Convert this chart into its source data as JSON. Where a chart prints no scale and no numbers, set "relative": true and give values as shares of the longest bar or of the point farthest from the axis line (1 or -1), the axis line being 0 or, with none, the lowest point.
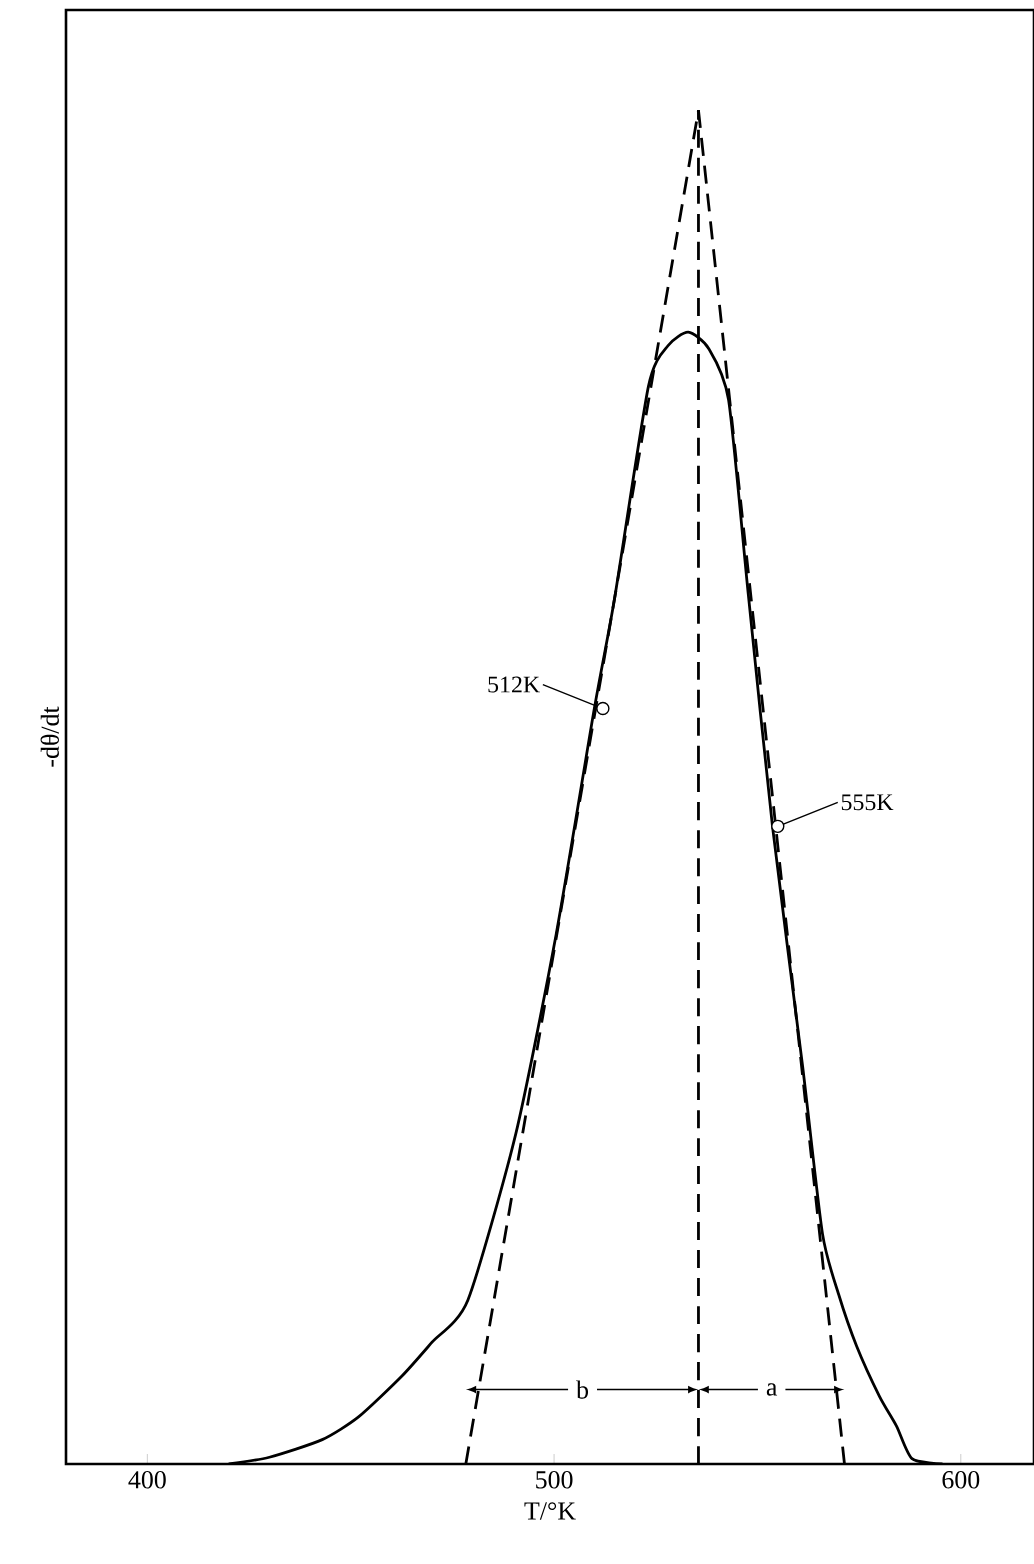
{
  "chart_data": {
    "type": "line",
    "relative": true,
    "xlabel": "T/°K",
    "ylabel": "-dθ/dt",
    "xlim": [
      380,
      618
    ],
    "xticks": [
      400,
      500,
      600
    ],
    "series": [
      {
        "type": "line",
        "color": "#000000",
        "line_style": "solid",
        "x": [
          420,
          430,
          443,
          452,
          462.6,
          470,
          478.8,
          490.6,
          500.5,
          509.9,
          514.8,
          523.2,
          528,
          533,
          538,
          542.9,
          547.8,
          553.7,
          561.1,
          566,
          570,
          574.4,
          580,
          584.2,
          588,
          595.5
        ],
        "values": [
          0,
          0.005,
          0.018,
          0.035,
          0.065,
          0.09,
          0.121,
          0.244,
          0.391,
          0.558,
          0.638,
          0.796,
          0.826,
          0.836,
          0.824,
          0.786,
          0.641,
          0.471,
          0.294,
          0.17,
          0.125,
          0.087,
          0.05,
          0.028,
          0.004,
          0
        ]
      },
      {
        "type": "line",
        "color": "#000000",
        "line_style": "dashed",
        "x": [
          478.3,
          535.5
        ],
        "values": [
          0,
          1
        ]
      },
      {
        "type": "line",
        "color": "#000000",
        "line_style": "dashed",
        "x": [
          535.5,
          571.4
        ],
        "values": [
          1,
          0
        ]
      },
      {
        "type": "line",
        "color": "#000000",
        "line_style": "dashed",
        "x": [
          535.5,
          535.5
        ],
        "values": [
          0,
          1
        ]
      }
    ],
    "annotations": [
      {
        "text": "512K",
        "x": 512,
        "y": 0.558
      },
      {
        "text": "555K",
        "x": 555,
        "y": 0.471
      },
      {
        "text": "b",
        "x": 507,
        "y": 0.055
      },
      {
        "text": "a",
        "x": 553.5,
        "y": 0.055
      }
    ]
  }
}
